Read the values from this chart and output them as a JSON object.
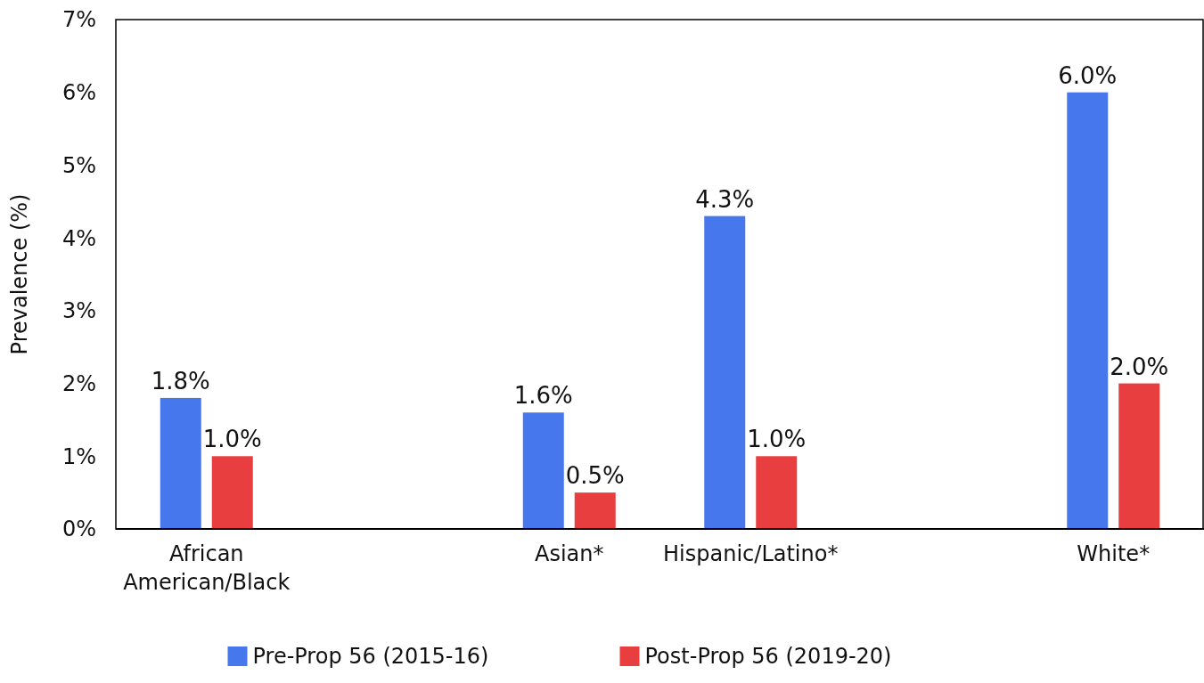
{
  "chart_data": {
    "type": "bar",
    "ylabel": "Prevalence (%)",
    "categories": [
      "African American/Black",
      null,
      "Asian*",
      "Hispanic/Latino*",
      null,
      "White*"
    ],
    "series": [
      {
        "name": "Pre-Prop 56 (2015-16)",
        "color": "#4777ec",
        "values": [
          1.8,
          null,
          1.6,
          4.3,
          null,
          6.0
        ],
        "value_labels": [
          "1.8%",
          null,
          "1.6%",
          "4.3%",
          null,
          "6.0%"
        ]
      },
      {
        "name": "Post-Prop 56 (2019-20)",
        "color": "#e83e3f",
        "values": [
          1.0,
          null,
          0.5,
          1.0,
          null,
          2.0
        ],
        "value_labels": [
          "1.0%",
          null,
          "0.5%",
          "1.0%",
          null,
          "2.0%"
        ]
      }
    ],
    "ylim": [
      0,
      7
    ],
    "yticks": [
      {
        "value": 0,
        "label": "0%"
      },
      {
        "value": 1,
        "label": "1%"
      },
      {
        "value": 2,
        "label": "2%"
      },
      {
        "value": 3,
        "label": "3%"
      },
      {
        "value": 4,
        "label": "4%"
      },
      {
        "value": 5,
        "label": "5%"
      },
      {
        "value": 6,
        "label": "6%"
      },
      {
        "value": 7,
        "label": "7%"
      }
    ],
    "grid": false,
    "legend": "bottom"
  }
}
